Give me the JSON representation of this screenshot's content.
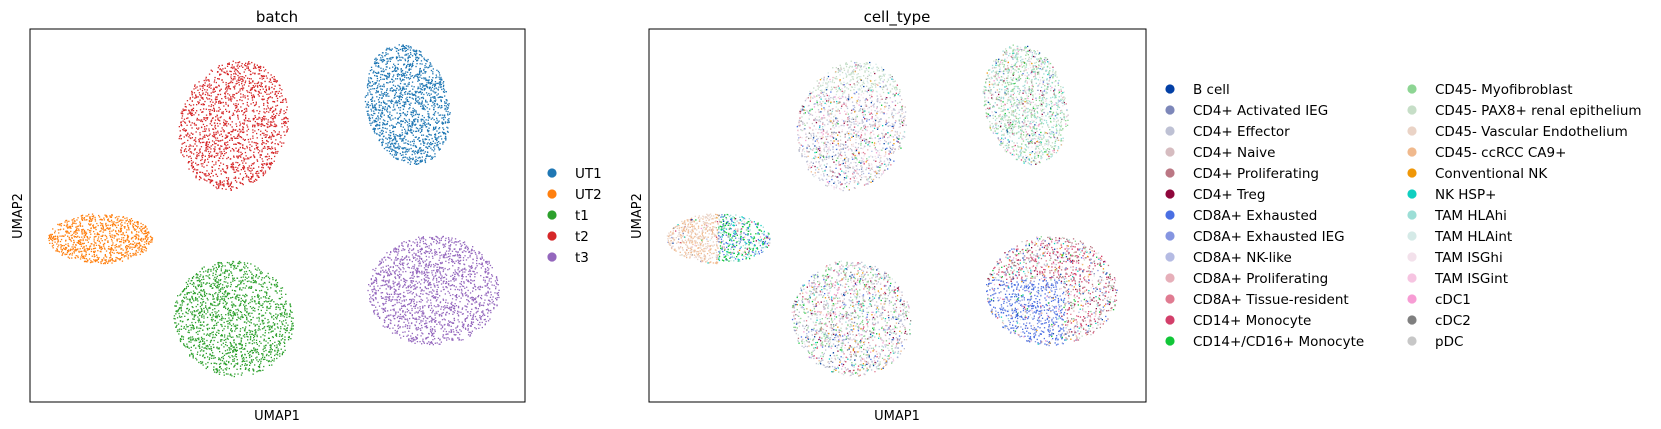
{
  "chart_data": [
    {
      "type": "scatter",
      "title": "batch",
      "xlabel": "UMAP1",
      "ylabel": "UMAP2",
      "xticks": "none",
      "yticks": "none",
      "legend_placement": "right",
      "legend": [
        {
          "label": "UT1",
          "color": "#1f77b4"
        },
        {
          "label": "UT2",
          "color": "#ff7f0e"
        },
        {
          "label": "t1",
          "color": "#2ca02c"
        },
        {
          "label": "t2",
          "color": "#d62728"
        },
        {
          "label": "t3",
          "color": "#9467bd"
        }
      ]
    },
    {
      "type": "scatter",
      "title": "cell_type",
      "xlabel": "UMAP1",
      "ylabel": "UMAP2",
      "xticks": "none",
      "yticks": "none",
      "legend_placement": "right",
      "legend_columns": 2,
      "legend": [
        {
          "label": "B cell",
          "color": "#023fa5"
        },
        {
          "label": "CD4+ Activated IEG",
          "color": "#7d87b9"
        },
        {
          "label": "CD4+ Effector",
          "color": "#bec1d4"
        },
        {
          "label": "CD4+ Naive",
          "color": "#d6bcc0"
        },
        {
          "label": "CD4+ Proliferating",
          "color": "#bb7784"
        },
        {
          "label": "CD4+ Treg",
          "color": "#8e063b"
        },
        {
          "label": "CD8A+ Exhausted",
          "color": "#4a6fe3"
        },
        {
          "label": "CD8A+ Exhausted IEG",
          "color": "#8595e1"
        },
        {
          "label": "CD8A+ NK-like",
          "color": "#b5bbe3"
        },
        {
          "label": "CD8A+ Proliferating",
          "color": "#e6afb9"
        },
        {
          "label": "CD8A+ Tissue-resident",
          "color": "#e07b91"
        },
        {
          "label": "CD14+ Monocyte",
          "color": "#d33f6a"
        },
        {
          "label": "CD14+/CD16+ Monocyte",
          "color": "#11c638"
        },
        {
          "label": "CD45- Myofibroblast",
          "color": "#8dd593"
        },
        {
          "label": "CD45- PAX8+ renal epithelium",
          "color": "#c6dec7"
        },
        {
          "label": "CD45- Vascular Endothelium",
          "color": "#ead3c6"
        },
        {
          "label": "CD45- ccRCC CA9+",
          "color": "#f0b98d"
        },
        {
          "label": "Conventional NK",
          "color": "#ef9708"
        },
        {
          "label": "NK HSP+",
          "color": "#0fcfc0"
        },
        {
          "label": "TAM HLAhi",
          "color": "#9cded6"
        },
        {
          "label": "TAM HLAint",
          "color": "#d5eae7"
        },
        {
          "label": "TAM ISGhi",
          "color": "#f3e1eb"
        },
        {
          "label": "TAM ISGint",
          "color": "#f6c4e1"
        },
        {
          "label": "cDC1",
          "color": "#f79cd4"
        },
        {
          "label": "cDC2",
          "color": "#7f7f7f"
        },
        {
          "label": "pDC",
          "color": "#c7c7c7"
        }
      ]
    }
  ]
}
